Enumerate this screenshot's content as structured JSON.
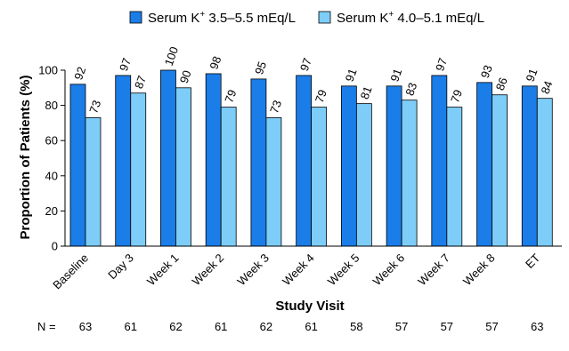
{
  "chart_data": {
    "type": "bar",
    "title": "",
    "xlabel": "Study Visit",
    "ylabel": "Proportion of Patients (%)",
    "ylim": [
      0,
      100
    ],
    "yticks": [
      0,
      20,
      40,
      60,
      80,
      100
    ],
    "categories": [
      "Baseline",
      "Day 3",
      "Week 1",
      "Week 2",
      "Week 3",
      "Week 4",
      "Week 5",
      "Week 6",
      "Week 7",
      "Week 8",
      "ET"
    ],
    "series": [
      {
        "name": "Serum K",
        "name_sup": "+",
        "name_rest": " 3.5–5.5 mEq/L",
        "color": "#1a7de8",
        "values": [
          92,
          97,
          100,
          98,
          95,
          97,
          91,
          91,
          97,
          93,
          91
        ]
      },
      {
        "name": "Serum K",
        "name_sup": "+",
        "name_rest": " 4.0–5.1 mEq/L",
        "color": "#7dcdf8",
        "values": [
          73,
          87,
          90,
          79,
          73,
          79,
          81,
          83,
          79,
          86,
          84
        ]
      }
    ],
    "n_row": {
      "label": "N =",
      "values": [
        63,
        61,
        62,
        61,
        62,
        61,
        58,
        57,
        57,
        57,
        63
      ]
    },
    "legend_position": "top",
    "grid": false
  }
}
